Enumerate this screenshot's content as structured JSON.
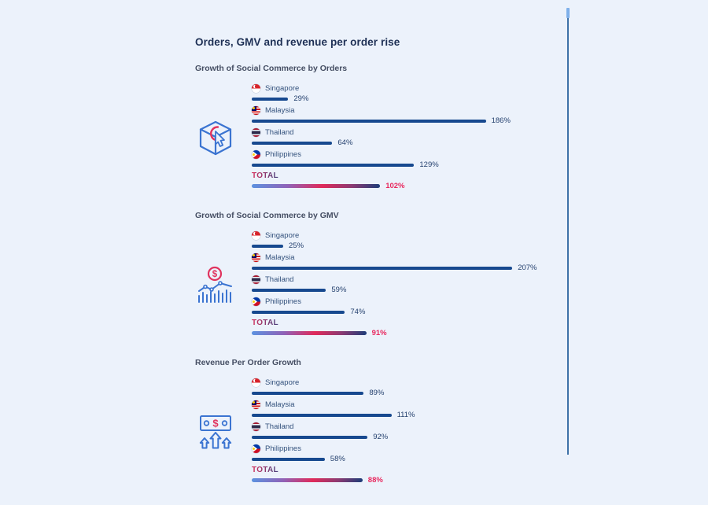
{
  "page": {
    "title": "Orders, GMV and revenue per order rise"
  },
  "colors": {
    "background": "#ecf2fb",
    "bar_navy": "#17498f",
    "accent_red": "#e0335e",
    "icon_blue": "#3b74d1",
    "total_value_red": "#e8285e",
    "total_gradient": [
      "#5c92e0",
      "#8f63b8",
      "#e02a5a",
      "#8c3a72",
      "#1d3c78"
    ]
  },
  "chart_data": [
    {
      "type": "bar",
      "orientation": "horizontal",
      "title": "Growth of Social Commerce by Orders",
      "icon": "orders-cube-cursor-icon",
      "unit": "%",
      "categories": [
        "Singapore",
        "Malaysia",
        "Thailand",
        "Philippines"
      ],
      "values": [
        29,
        186,
        64,
        129
      ],
      "flag_icons": [
        "singapore-flag-icon",
        "malaysia-flag-icon",
        "thailand-flag-icon",
        "philippines-flag-icon"
      ],
      "total_label": "TOTAL",
      "total": 102,
      "xlim": [
        0,
        220
      ],
      "grid": false,
      "legend": "none"
    },
    {
      "type": "bar",
      "orientation": "horizontal",
      "title": "Growth of Social Commerce by GMV",
      "icon": "gmv-money-chart-icon",
      "unit": "%",
      "categories": [
        "Singapore",
        "Malaysia",
        "Thailand",
        "Philippines"
      ],
      "values": [
        25,
        207,
        59,
        74
      ],
      "flag_icons": [
        "singapore-flag-icon",
        "malaysia-flag-icon",
        "thailand-flag-icon",
        "philippines-flag-icon"
      ],
      "total_label": "TOTAL",
      "total": 91,
      "xlim": [
        0,
        220
      ],
      "grid": false,
      "legend": "none"
    },
    {
      "type": "bar",
      "orientation": "horizontal",
      "title": "Revenue Per Order Growth",
      "icon": "revenue-banknote-arrows-icon",
      "unit": "%",
      "categories": [
        "Singapore",
        "Malaysia",
        "Thailand",
        "Philippines"
      ],
      "values": [
        89,
        111,
        92,
        58
      ],
      "flag_icons": [
        "singapore-flag-icon",
        "malaysia-flag-icon",
        "thailand-flag-icon",
        "philippines-flag-icon"
      ],
      "total_label": "TOTAL",
      "total": 88,
      "xlim": [
        0,
        220
      ],
      "grid": false,
      "legend": "none"
    }
  ]
}
